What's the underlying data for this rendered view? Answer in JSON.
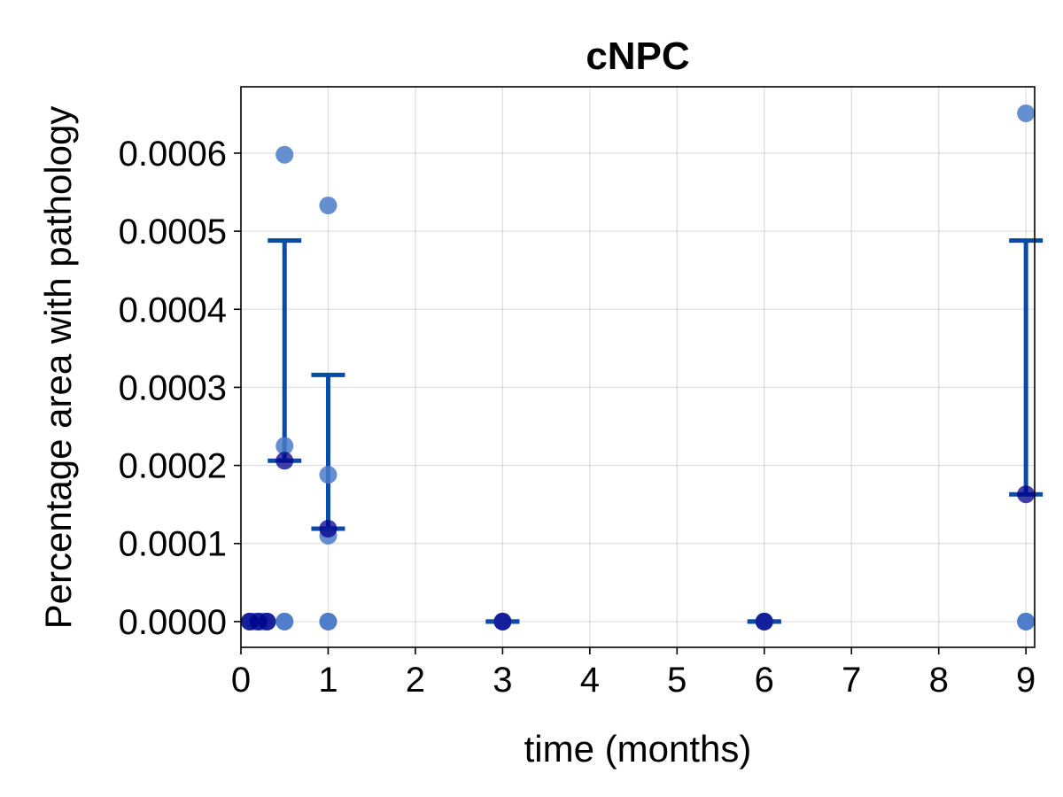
{
  "chart_data": {
    "type": "scatter",
    "title": "cNPC",
    "xlabel": "time (months)",
    "ylabel": "Percentage area with pathology",
    "xlim": [
      0,
      9.1
    ],
    "ylim": [
      -3.3e-05,
      0.000685
    ],
    "x_ticks": [
      0,
      1,
      2,
      3,
      4,
      5,
      6,
      7,
      8,
      9
    ],
    "x_tick_labels": [
      "0",
      "1",
      "2",
      "3",
      "4",
      "5",
      "6",
      "7",
      "8",
      "9"
    ],
    "y_ticks": [
      0,
      0.0001,
      0.0002,
      0.0003,
      0.0004,
      0.0005,
      0.0006
    ],
    "y_tick_labels": [
      "0.0000",
      "0.0001",
      "0.0002",
      "0.0003",
      "0.0004",
      "0.0005",
      "0.0006"
    ],
    "grid": true,
    "colors": {
      "points": "#4a7bc8",
      "mean": "#00008b",
      "errorbar": "#0a4aa8"
    },
    "points": [
      {
        "x": 0.1,
        "y": 0
      },
      {
        "x": 0.15,
        "y": 0
      },
      {
        "x": 0.2,
        "y": 0
      },
      {
        "x": 0.25,
        "y": 0
      },
      {
        "x": 0.3,
        "y": 0
      },
      {
        "x": 0.5,
        "y": 0.000598
      },
      {
        "x": 0.5,
        "y": 0.000225
      },
      {
        "x": 0.5,
        "y": 0
      },
      {
        "x": 0.5,
        "y": 0
      },
      {
        "x": 1,
        "y": 0.000533
      },
      {
        "x": 1,
        "y": 0.000188
      },
      {
        "x": 1,
        "y": 0.00011
      },
      {
        "x": 1,
        "y": 0
      },
      {
        "x": 1,
        "y": 0
      },
      {
        "x": 3,
        "y": 0
      },
      {
        "x": 3,
        "y": 0
      },
      {
        "x": 6,
        "y": 0
      },
      {
        "x": 6,
        "y": 0
      },
      {
        "x": 9,
        "y": 0.000651
      },
      {
        "x": 9,
        "y": 0
      },
      {
        "x": 9,
        "y": 0
      }
    ],
    "means": [
      {
        "x": 0.1,
        "y": 0
      },
      {
        "x": 0.2,
        "y": 0
      },
      {
        "x": 0.3,
        "y": 0
      },
      {
        "x": 0.5,
        "y": 0.000206
      },
      {
        "x": 1,
        "y": 0.000119
      },
      {
        "x": 3,
        "y": 0
      },
      {
        "x": 6,
        "y": 0
      },
      {
        "x": 9,
        "y": 0.000163
      }
    ],
    "error_bars": [
      {
        "x": 0.5,
        "low": 0.000206,
        "high": 0.000488
      },
      {
        "x": 1,
        "low": 0.000119,
        "high": 0.000316
      },
      {
        "x": 3,
        "low": 0,
        "high": 0
      },
      {
        "x": 6,
        "low": 0,
        "high": 0
      },
      {
        "x": 9,
        "low": 0.000163,
        "high": 0.000488
      }
    ]
  }
}
